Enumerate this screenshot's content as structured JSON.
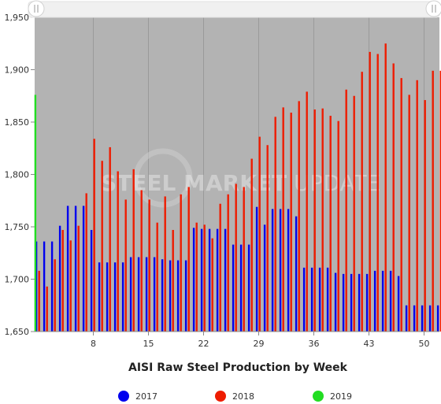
{
  "chart_data": {
    "type": "bar",
    "title": "AISI Raw Steel Production by Week",
    "xlabel": "",
    "ylabel": "",
    "xlim": [
      1,
      52
    ],
    "ylim": [
      1650,
      1950
    ],
    "yticks": [
      1650,
      1700,
      1750,
      1800,
      1850,
      1900,
      1950
    ],
    "ytick_labels": [
      "1,650",
      "1,700",
      "1,750",
      "1,800",
      "1,850",
      "1,900",
      "1,950"
    ],
    "xticks": [
      8,
      15,
      22,
      29,
      36,
      43,
      50
    ],
    "xtick_labels": [
      "8",
      "15",
      "22",
      "29",
      "36",
      "43",
      "50"
    ],
    "grid": "vertical",
    "legend_position": "bottom",
    "watermark": {
      "text_bold": "STEEL MARKET",
      "text_light": " UPDATE"
    },
    "series": [
      {
        "name": "2017",
        "color": "#0000ee",
        "x": [
          1,
          2,
          3,
          4,
          5,
          6,
          7,
          8,
          9,
          10,
          11,
          12,
          13,
          14,
          15,
          16,
          17,
          18,
          19,
          20,
          21,
          22,
          23,
          24,
          25,
          26,
          27,
          28,
          29,
          30,
          31,
          32,
          33,
          34,
          35,
          36,
          37,
          38,
          39,
          40,
          41,
          42,
          43,
          44,
          45,
          46,
          47,
          48,
          49,
          50,
          51,
          52
        ],
        "values": [
          1736,
          1736,
          1736,
          1751,
          1770,
          1770,
          1770,
          1747,
          1716,
          1716,
          1716,
          1716,
          1721,
          1721,
          1721,
          1721,
          1719,
          1718,
          1718,
          1718,
          1749,
          1748,
          1748,
          1748,
          1748,
          1733,
          1733,
          1733,
          1769,
          1752,
          1767,
          1767,
          1767,
          1760,
          1711,
          1711,
          1711,
          1711,
          1706,
          1705,
          1705,
          1705,
          1705,
          1708,
          1708,
          1708,
          1703,
          1675,
          1675,
          1675,
          1675,
          1675
        ]
      },
      {
        "name": "2018",
        "color": "#ee1c00",
        "x": [
          1,
          2,
          3,
          4,
          5,
          6,
          7,
          8,
          9,
          10,
          11,
          12,
          13,
          14,
          15,
          16,
          17,
          18,
          19,
          20,
          21,
          22,
          23,
          24,
          25,
          26,
          27,
          28,
          29,
          30,
          31,
          32,
          33,
          34,
          35,
          36,
          37,
          38,
          39,
          40,
          41,
          42,
          43,
          44,
          45,
          46,
          47,
          48,
          49,
          50,
          51,
          52
        ],
        "values": [
          1708,
          1693,
          1719,
          1747,
          1737,
          1751,
          1782,
          1834,
          1813,
          1826,
          1803,
          1776,
          1805,
          1785,
          1776,
          1754,
          1779,
          1747,
          1781,
          1788,
          1754,
          1752,
          1739,
          1772,
          1781,
          1791,
          1788,
          1815,
          1836,
          1828,
          1855,
          1864,
          1859,
          1870,
          1879,
          1862,
          1863,
          1856,
          1851,
          1881,
          1875,
          1898,
          1917,
          1915,
          1925,
          1906,
          1892,
          1876,
          1890,
          1871,
          1899,
          1899
        ]
      },
      {
        "name": "2019",
        "color": "#22dd22",
        "x": [
          1
        ],
        "values": [
          1876
        ]
      }
    ]
  }
}
